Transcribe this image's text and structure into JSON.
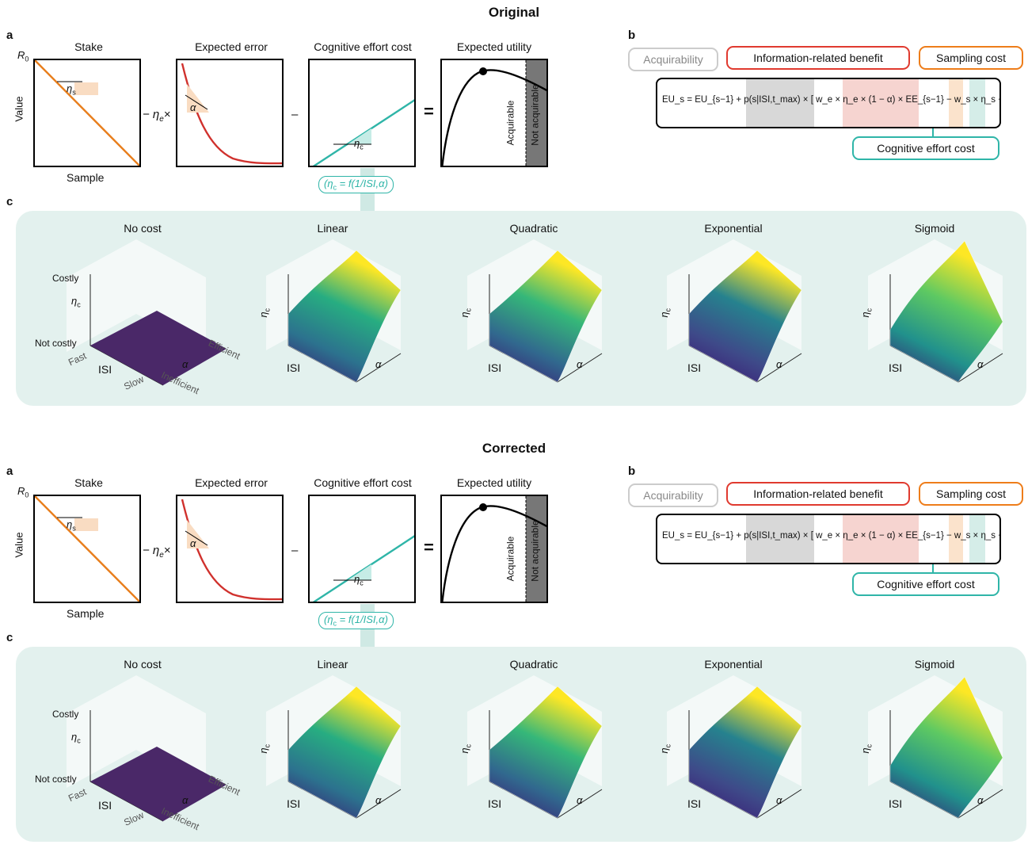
{
  "versions": [
    {
      "title": "Original",
      "panel_a": {
        "label": "a",
        "stake_title": "Stake",
        "error_title": "Expected error",
        "effort_title": "Cognitive effort cost",
        "utility_title": "Expected utility",
        "r0": "R",
        "r0_sub": "0",
        "y_axis": "Value",
        "x_axis": "Sample",
        "eta_s": "η",
        "eta_s_sub": "s",
        "op_minus_eta": "− η",
        "op_eta_sub": "e",
        "op_times": "×",
        "alpha": "α",
        "op_minus": "–",
        "eta_c": "η",
        "eta_c_sub": "c",
        "op_equals": "=",
        "acquirable": "Acquirable",
        "not_acquirable": "Not acquirable",
        "fn_label": "(η",
        "fn_sub": "c",
        "fn_rest": " = f(1/ISI,α)"
      },
      "panel_b": {
        "label": "b",
        "acquirability": "Acquirability",
        "info_benefit": "Information-related benefit",
        "sampling_cost": "Sampling cost",
        "cognitive_cost": "Cognitive effort cost",
        "equation": "EU_s = EU_{s−1} + p(s|ISI,t_max) × [ w_e × η_e × (1 − α) × EE_{s−1} − w_s × η_s − η_c ]"
      },
      "panel_c": {
        "label": "c",
        "titles": [
          "No cost",
          "Linear",
          "Quadratic",
          "Exponential",
          "Sigmoid"
        ],
        "costly": "Costly",
        "not_costly": "Not costly",
        "eta_c": "η",
        "eta_c_sub": "c",
        "isi": "ISI",
        "alpha": "α",
        "fast": "Fast",
        "slow": "Slow",
        "efficient": "Efficient",
        "inefficient": "Inefficient"
      }
    },
    {
      "title": "Corrected",
      "panel_a": {
        "label": "a",
        "stake_title": "Stake",
        "error_title": "Expected error",
        "effort_title": "Cognitive effort cost",
        "utility_title": "Expected utility",
        "r0": "R",
        "r0_sub": "0",
        "y_axis": "Value",
        "x_axis": "Sample",
        "eta_s": "η",
        "eta_s_sub": "s",
        "op_minus_eta": "− η",
        "op_eta_sub": "e",
        "op_times": "×",
        "alpha": "α",
        "op_minus": "–",
        "eta_c": "η",
        "eta_c_sub": "c",
        "op_equals": "=",
        "acquirable": "Acquirable",
        "not_acquirable": "Not acquirable",
        "fn_label": "(η",
        "fn_sub": "c",
        "fn_rest": " = f(1/ISI,α)"
      },
      "panel_b": {
        "label": "b",
        "acquirability": "Acquirability",
        "info_benefit": "Information-related benefit",
        "sampling_cost": "Sampling cost",
        "cognitive_cost": "Cognitive effort cost",
        "equation": "EU_s = EU_{s−1} + p(s|ISI,t_max) × [ w_e × η_e × (1 − α) × EE_{s−1} − w_s × η_s − η_c ]"
      },
      "panel_c": {
        "label": "c",
        "titles": [
          "No cost",
          "Linear",
          "Quadratic",
          "Exponential",
          "Sigmoid"
        ],
        "costly": "Costly",
        "not_costly": "Not costly",
        "eta_c": "η",
        "eta_c_sub": "c",
        "isi": "ISI",
        "alpha": "α",
        "fast": "Fast",
        "slow": "Slow",
        "efficient": "Efficient",
        "inefficient": "Inefficient"
      }
    }
  ],
  "colors": {
    "stake": "#e87e1c",
    "error": "#d0312d",
    "effort": "#2fb5a8",
    "panel_c_bg": "#e3f1ee",
    "acquirability": "#c8c8c8",
    "info": "#e03a2f",
    "sampling": "#ee7d1a",
    "no_cost_surface": "#4a2868"
  }
}
